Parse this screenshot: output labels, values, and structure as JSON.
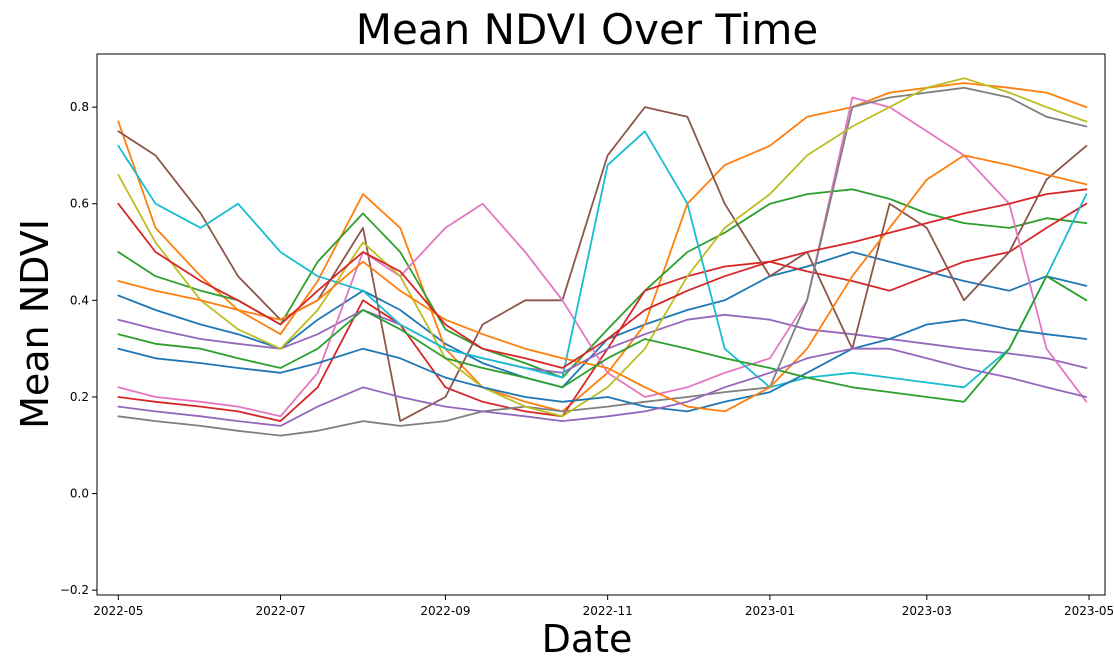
{
  "chart_data": {
    "type": "line",
    "title": "Mean NDVI Over Time",
    "xlabel": "Date",
    "ylabel": "Mean NDVI",
    "x_range": [
      "2022-04-23",
      "2023-05-07"
    ],
    "ylim": [
      -0.21,
      0.91
    ],
    "x_ticks": [
      "2022-05",
      "2022-07",
      "2022-09",
      "2022-11",
      "2023-01",
      "2023-03",
      "2023-05"
    ],
    "y_ticks": [
      -0.2,
      0.0,
      0.2,
      0.4,
      0.6,
      0.8
    ],
    "grid": false,
    "legend": "none",
    "colors": [
      "#1f77b4",
      "#ff7f0e",
      "#2ca02c",
      "#d62728",
      "#9467bd",
      "#8c564b",
      "#e377c2",
      "#7f7f7f",
      "#bcbd22",
      "#17becf"
    ],
    "x": [
      "2022-05-01",
      "2022-05-15",
      "2022-06-01",
      "2022-06-15",
      "2022-07-01",
      "2022-07-15",
      "2022-08-01",
      "2022-08-15",
      "2022-09-01",
      "2022-09-15",
      "2022-10-01",
      "2022-10-15",
      "2022-11-01",
      "2022-11-15",
      "2022-12-01",
      "2022-12-15",
      "2023-01-01",
      "2023-01-15",
      "2023-02-01",
      "2023-02-15",
      "2023-03-01",
      "2023-03-15",
      "2023-04-01",
      "2023-04-15",
      "2023-04-30"
    ],
    "series": [
      {
        "values": [
          0.41,
          0.38,
          0.35,
          0.33,
          0.3,
          0.36,
          0.42,
          0.38,
          0.31,
          0.27,
          0.24,
          0.22,
          0.32,
          0.35,
          0.38,
          0.4,
          0.45,
          0.47,
          0.5,
          0.48,
          0.46,
          0.44,
          0.42,
          0.45,
          0.43
        ]
      },
      {
        "values": [
          0.77,
          0.55,
          0.45,
          0.38,
          0.33,
          0.44,
          0.62,
          0.55,
          0.3,
          0.22,
          0.19,
          0.17,
          0.25,
          0.35,
          0.6,
          0.68,
          0.72,
          0.78,
          0.8,
          0.83,
          0.84,
          0.85,
          0.84,
          0.83,
          0.8
        ]
      },
      {
        "values": [
          0.5,
          0.45,
          0.42,
          0.4,
          0.35,
          0.48,
          0.58,
          0.5,
          0.34,
          0.3,
          0.27,
          0.24,
          0.34,
          0.42,
          0.5,
          0.54,
          0.6,
          0.62,
          0.63,
          0.61,
          0.58,
          0.56,
          0.55,
          0.57,
          0.56
        ]
      },
      {
        "values": [
          0.2,
          0.19,
          0.18,
          0.17,
          0.15,
          0.22,
          0.4,
          0.35,
          0.22,
          0.19,
          0.17,
          0.16,
          0.3,
          0.42,
          0.45,
          0.47,
          0.48,
          0.46,
          0.44,
          0.42,
          0.45,
          0.48,
          0.5,
          0.55,
          0.6
        ]
      },
      {
        "values": [
          0.36,
          0.34,
          0.32,
          0.31,
          0.3,
          0.33,
          0.38,
          0.35,
          0.3,
          0.28,
          0.26,
          0.25,
          0.3,
          0.33,
          0.36,
          0.37,
          0.36,
          0.34,
          0.33,
          0.32,
          0.31,
          0.3,
          0.29,
          0.28,
          0.26
        ]
      },
      {
        "values": [
          0.75,
          0.7,
          0.58,
          0.45,
          0.36,
          0.4,
          0.55,
          0.15,
          0.2,
          0.35,
          0.4,
          0.4,
          0.7,
          0.8,
          0.78,
          0.6,
          0.45,
          0.5,
          0.3,
          0.6,
          0.55,
          0.4,
          0.5,
          0.65,
          0.72
        ]
      },
      {
        "values": [
          0.22,
          0.2,
          0.19,
          0.18,
          0.16,
          0.25,
          0.5,
          0.45,
          0.55,
          0.6,
          0.5,
          0.4,
          0.25,
          0.2,
          0.22,
          0.25,
          0.28,
          0.4,
          0.82,
          0.8,
          0.75,
          0.7,
          0.6,
          0.3,
          0.19
        ]
      },
      {
        "values": [
          0.16,
          0.15,
          0.14,
          0.13,
          0.12,
          0.13,
          0.15,
          0.14,
          0.15,
          0.17,
          0.18,
          0.17,
          0.18,
          0.19,
          0.2,
          0.21,
          0.22,
          0.4,
          0.8,
          0.82,
          0.83,
          0.84,
          0.82,
          0.78,
          0.76
        ]
      },
      {
        "values": [
          0.66,
          0.52,
          0.4,
          0.34,
          0.3,
          0.38,
          0.52,
          0.45,
          0.28,
          0.22,
          0.18,
          0.16,
          0.22,
          0.3,
          0.45,
          0.55,
          0.62,
          0.7,
          0.76,
          0.8,
          0.84,
          0.86,
          0.83,
          0.8,
          0.77
        ]
      },
      {
        "values": [
          0.72,
          0.6,
          0.55,
          0.6,
          0.5,
          0.45,
          0.42,
          0.35,
          0.3,
          0.28,
          0.26,
          0.24,
          0.68,
          0.75,
          0.6,
          0.3,
          0.22,
          0.24,
          0.25,
          0.24,
          0.23,
          0.22,
          0.3,
          0.45,
          0.62
        ]
      },
      {
        "values": [
          0.3,
          0.28,
          0.27,
          0.26,
          0.25,
          0.27,
          0.3,
          0.28,
          0.24,
          0.22,
          0.2,
          0.19,
          0.2,
          0.18,
          0.17,
          0.19,
          0.21,
          0.25,
          0.3,
          0.32,
          0.35,
          0.36,
          0.34,
          0.33,
          0.32
        ]
      },
      {
        "values": [
          0.44,
          0.42,
          0.4,
          0.38,
          0.36,
          0.4,
          0.48,
          0.42,
          0.36,
          0.33,
          0.3,
          0.28,
          0.26,
          0.22,
          0.18,
          0.17,
          0.22,
          0.3,
          0.45,
          0.55,
          0.65,
          0.7,
          0.68,
          0.66,
          0.64
        ]
      },
      {
        "values": [
          0.33,
          0.31,
          0.3,
          0.28,
          0.26,
          0.3,
          0.38,
          0.34,
          0.28,
          0.26,
          0.24,
          0.22,
          0.28,
          0.32,
          0.3,
          0.28,
          0.26,
          0.24,
          0.22,
          0.21,
          0.2,
          0.19,
          0.3,
          0.45,
          0.4
        ]
      },
      {
        "values": [
          0.6,
          0.5,
          0.44,
          0.4,
          0.35,
          0.42,
          0.5,
          0.46,
          0.35,
          0.3,
          0.28,
          0.26,
          0.32,
          0.38,
          0.42,
          0.45,
          0.48,
          0.5,
          0.52,
          0.54,
          0.56,
          0.58,
          0.6,
          0.62,
          0.63
        ]
      },
      {
        "values": [
          0.18,
          0.17,
          0.16,
          0.15,
          0.14,
          0.18,
          0.22,
          0.2,
          0.18,
          0.17,
          0.16,
          0.15,
          0.16,
          0.17,
          0.19,
          0.22,
          0.25,
          0.28,
          0.3,
          0.3,
          0.28,
          0.26,
          0.24,
          0.22,
          0.2
        ]
      }
    ]
  }
}
